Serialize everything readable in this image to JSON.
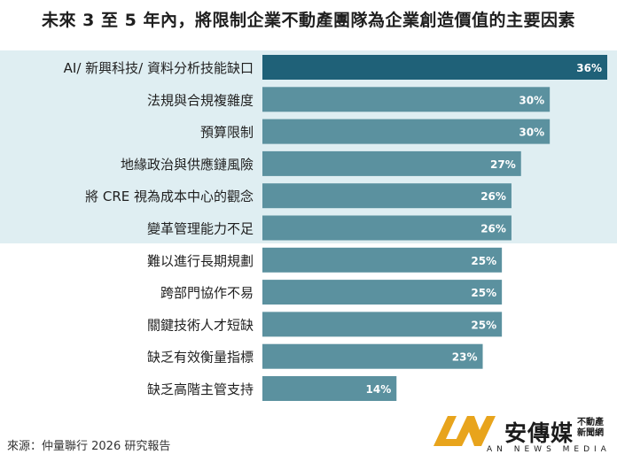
{
  "title": "未來 3 至 5 年內，將限制企業不動產團隊為企業創造價值的主要因素",
  "chart_data": {
    "type": "bar",
    "orientation": "horizontal",
    "categories": [
      "AI/ 新興科技/ 資料分析技能缺口",
      "法規與合規複雜度",
      "預算限制",
      "地緣政治與供應鏈風險",
      "將 CRE 視為成本中心的觀念",
      "變革管理能力不足",
      "難以進行長期規劃",
      "跨部門協作不易",
      "關鍵技術人才短缺",
      "缺乏有效衡量指標",
      "缺乏高階主管支持"
    ],
    "values": [
      36,
      30,
      30,
      27,
      26,
      26,
      25,
      25,
      25,
      23,
      14
    ],
    "value_labels": [
      "36%",
      "30%",
      "30%",
      "27%",
      "26%",
      "26%",
      "25%",
      "25%",
      "25%",
      "23%",
      "14%"
    ],
    "xlim": [
      0,
      36
    ],
    "highlighted_count": 6,
    "colors": {
      "top": "#1f6178",
      "bar": "#5b919f",
      "band": "#dfeef2",
      "label": "#ffffff"
    },
    "grid": false,
    "legend": "none"
  },
  "footer": {
    "source": "來源：仲量聯行 2026 研究報告"
  },
  "logo": {
    "cn": "安傳媒",
    "small": "不動產新聞網",
    "en": "AN NEWS MEDIA",
    "colors": {
      "gold": "#e8a41c",
      "dark": "#1b1b1b"
    }
  }
}
